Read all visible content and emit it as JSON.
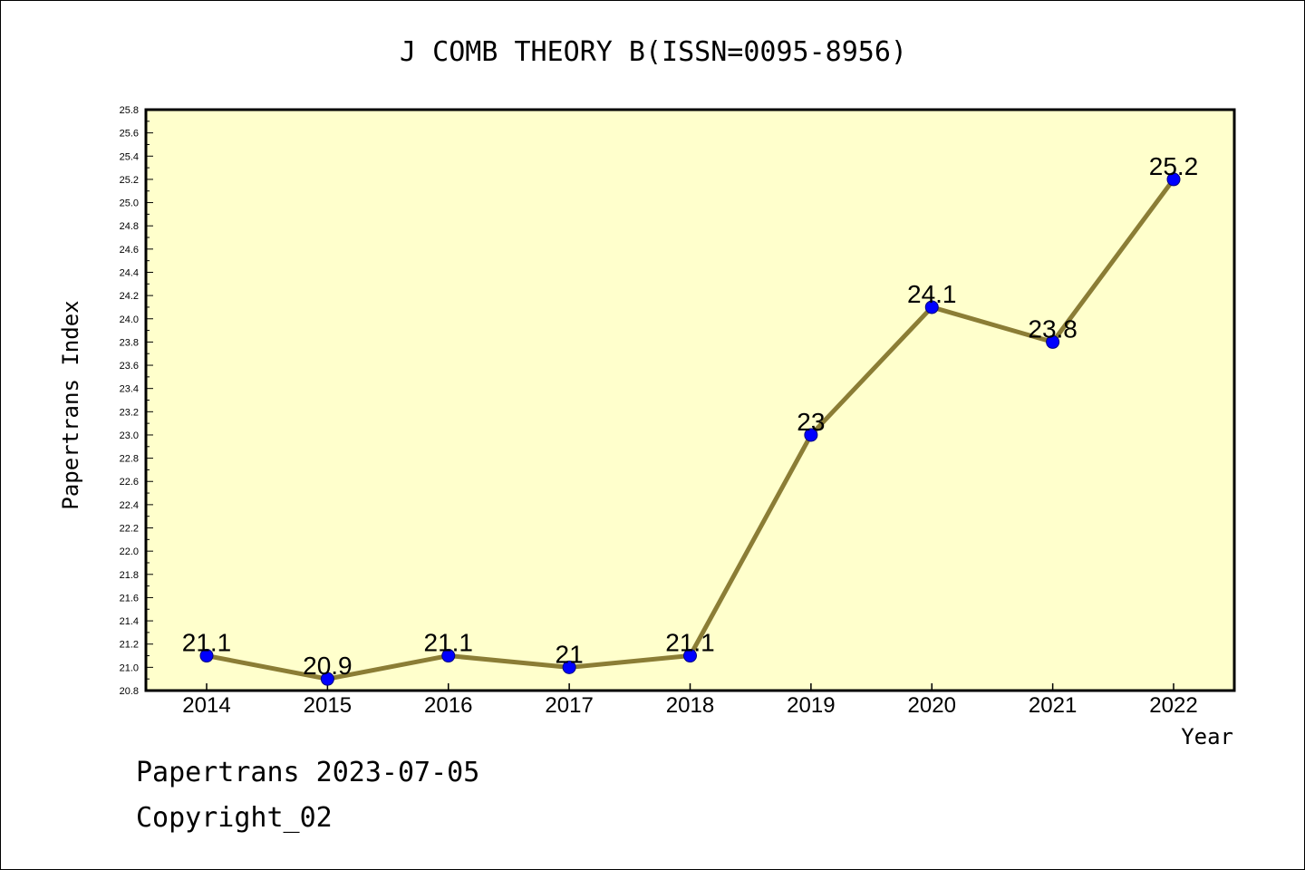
{
  "chart_data": {
    "type": "line",
    "title": "J COMB THEORY B(ISSN=0095-8956)",
    "xlabel": "Year",
    "ylabel": "Papertrans Index",
    "categories": [
      "2014",
      "2015",
      "2016",
      "2017",
      "2018",
      "2019",
      "2020",
      "2021",
      "2022"
    ],
    "series": [
      {
        "values": [
          21.1,
          20.9,
          21.1,
          21.0,
          21.1,
          23.0,
          24.1,
          23.8,
          25.2
        ],
        "labels": [
          "21.1",
          "20.9",
          "21.1",
          "21",
          "21.1",
          "23",
          "24.1",
          "23.8",
          "25.2"
        ]
      }
    ],
    "ylim": [
      20.8,
      25.8
    ],
    "ytick_step": 0.2,
    "grid": false,
    "legend": "none",
    "colors": {
      "plot_background": "#ffffcc",
      "line": "#8b7d35",
      "marker": "#0000ff",
      "marker_edge": "#000080",
      "axes": "#000000"
    }
  },
  "footer": {
    "line1": "Papertrans 2023-07-05",
    "line2": "Copyright_02"
  }
}
